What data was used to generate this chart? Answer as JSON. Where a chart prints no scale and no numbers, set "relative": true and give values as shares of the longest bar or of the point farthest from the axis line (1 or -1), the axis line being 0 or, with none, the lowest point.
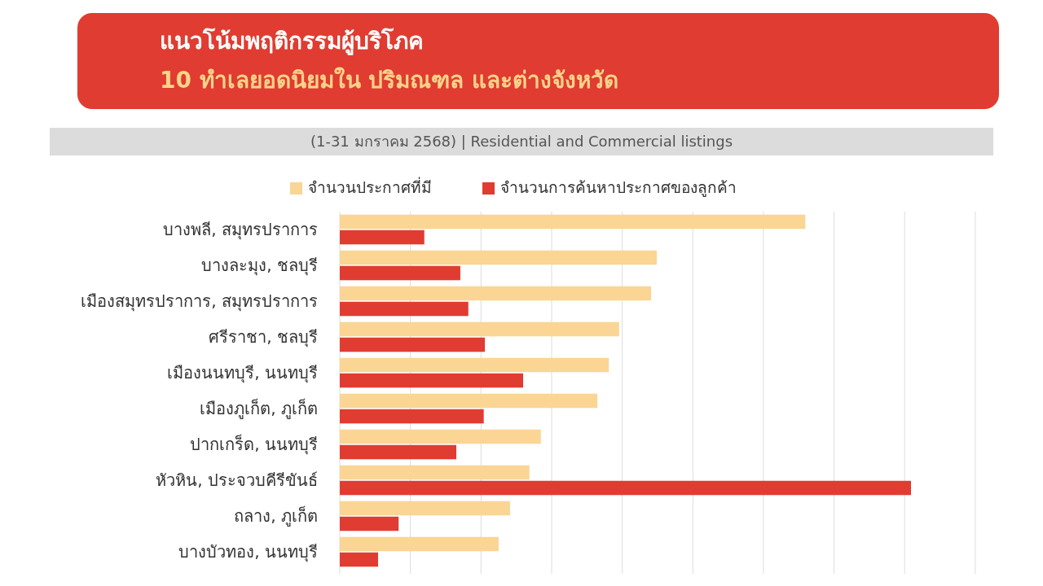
{
  "chart_data": {
    "type": "bar",
    "orientation": "horizontal",
    "relative": true,
    "title": "แนวโน้มพฤติกรรมผู้บริโภค",
    "subtitle": "10 ทำเลยอดนิยมใน ปริมณฑล และต่างจังหวัด",
    "annotations": [
      "(1-31 มกราคม 2568) | Residential and Commercial listings"
    ],
    "categories": [
      "บางพลี, สมุทรปราการ",
      "บางละมุง, ชลบุรี",
      "เมืองสมุทรปราการ, สมุทรปราการ",
      "ศรีราชา, ชลบุรี",
      "เมืองนนทบุรี, นนทบุรี",
      "เมืองภูเก็ต, ภูเก็ต",
      "ปากเกร็ด, นนทบุรี",
      "หัวหิน, ประจวบคีรีขันธ์",
      "ถลาง, ภูเก็ต",
      "บางบัวทอง, นนทบุรี"
    ],
    "series": [
      {
        "name": "จำนวนประกาศที่มี",
        "color": "#fad594",
        "values": [
          0.815,
          0.555,
          0.545,
          0.489,
          0.471,
          0.451,
          0.352,
          0.332,
          0.298,
          0.278
        ]
      },
      {
        "name": "จำนวนการค้นหาประกาศของลูกค้า",
        "color": "#e03c31",
        "values": [
          0.148,
          0.211,
          0.225,
          0.254,
          0.321,
          0.252,
          0.204,
          1.0,
          0.103,
          0.067
        ]
      }
    ],
    "grid": "x",
    "legend": "top"
  }
}
